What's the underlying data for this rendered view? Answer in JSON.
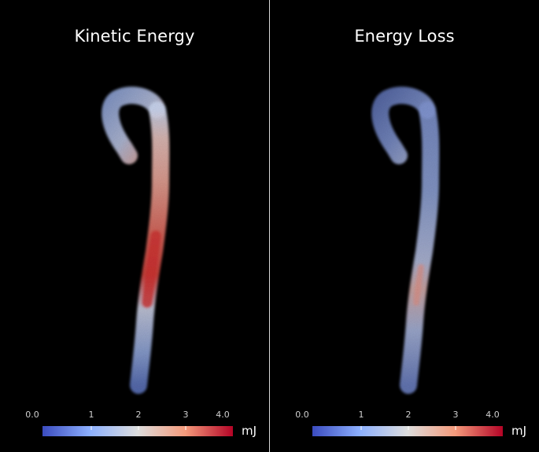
{
  "panels": [
    {
      "title": "Kinetic Energy"
    },
    {
      "title": "Energy Loss"
    }
  ],
  "colorbar": {
    "ticks": [
      "0.0",
      "1",
      "2",
      "3",
      "4.0"
    ],
    "unit": "mJ",
    "colors": [
      "#3b4cc0",
      "#dddddd",
      "#b40426"
    ]
  }
}
